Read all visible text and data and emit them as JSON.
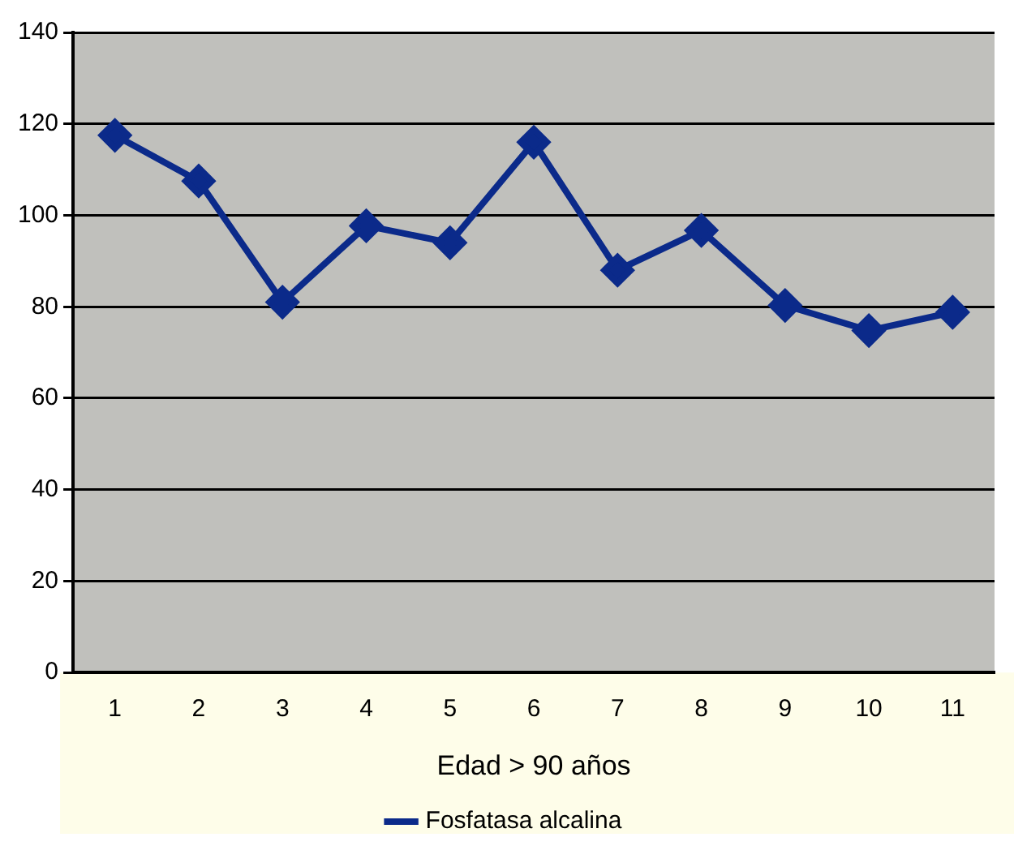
{
  "chart_data": {
    "type": "line",
    "xlabel": "Edad > 90 años",
    "categories": [
      "1",
      "2",
      "3",
      "4",
      "5",
      "6",
      "7",
      "8",
      "9",
      "10",
      "11"
    ],
    "series": [
      {
        "name": "Fosfatasa alcalina",
        "color": "#0b2a8a",
        "values": [
          117.5,
          107.5,
          81,
          97.7,
          94,
          116,
          88,
          96.7,
          80.3,
          74.8,
          78.8
        ]
      }
    ],
    "ylim": [
      0,
      140
    ],
    "yticks": [
      0,
      20,
      40,
      60,
      80,
      100,
      120,
      140
    ],
    "grid": "y",
    "legend": "bottom",
    "marker": "diamond",
    "line_style": "solid"
  }
}
